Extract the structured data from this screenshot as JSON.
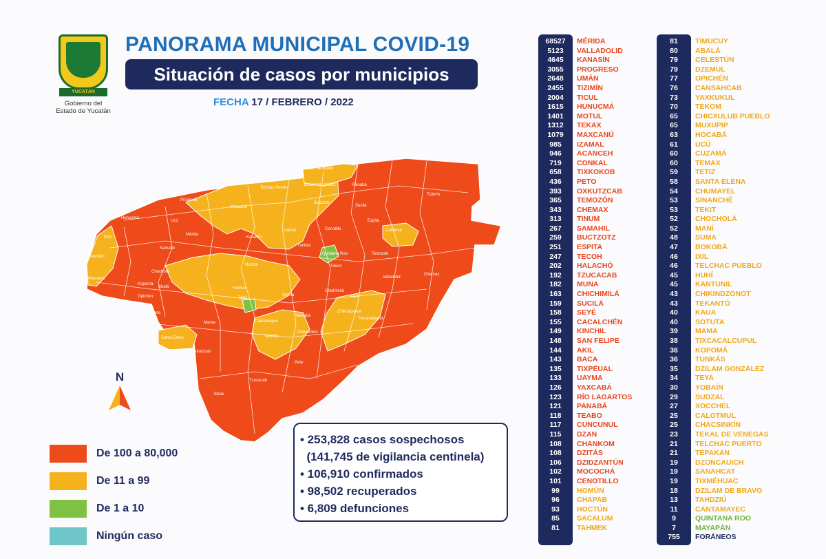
{
  "header": {
    "logo_ribbon": "YUCATÁN",
    "logo_line1": "Gobierno del",
    "logo_line2": "Estado de Yucatán",
    "title": "PANORAMA MUNICIPAL COVID-19",
    "subtitle": "Situación de casos por municipios",
    "date_label": "FECHA",
    "date_value": "17 / FEBRERO / 2022"
  },
  "colors": {
    "high": "#ee4a1a",
    "mid": "#f6b21c",
    "low": "#7fc243",
    "none": "#6ec6c9",
    "navy": "#1e2a5e",
    "title_blue": "#1f6fb8"
  },
  "compass_label": "N",
  "legend": [
    {
      "label": "De 100 a 80,000",
      "color": "#ee4a1a"
    },
    {
      "label": "De 11 a 99",
      "color": "#f6b21c"
    },
    {
      "label": "De 1 a 10",
      "color": "#7fc243"
    },
    {
      "label": "Ningún caso",
      "color": "#6ec6c9"
    }
  ],
  "stats": [
    "• 253,828 casos sospechosos",
    "  (141,745 de vigilancia centinela)",
    "• 106,910 confirmados",
    "• 98,502 recuperados",
    "• 6,809 defunciones"
  ],
  "map_labels": [
    "Dzilam de Bravo",
    "San Felipe",
    "Río Lagartos",
    "Dzilam González",
    "Telchac Puerto",
    "Panabá",
    "Tizimín",
    "Progreso",
    "Mocochá",
    "Buctzotz",
    "Sucilá",
    "Hunucmá",
    "Ucú",
    "Izamal",
    "Cenotillo",
    "Espita",
    "Calotmul",
    "Tetiz",
    "Mérida",
    "Kanasín",
    "Tunkás",
    "Celestún",
    "Samahil",
    "Quintana Roo",
    "Temozón",
    "Chocholá",
    "Hoctún",
    "Tinum",
    "Valladolid",
    "Chemax",
    "Maxcanú",
    "Kopomá",
    "Abalá",
    "Homún",
    "Chichimilá",
    "Halachó",
    "Opichén",
    "Tekit",
    "Sotuta",
    "Kaua",
    "Muna",
    "Mama",
    "Cantamayec",
    "Yaxcabá",
    "Chikindzonot",
    "Tixcacalcupul",
    "Chacsinkín",
    "Santa Elena",
    "Tahdziú",
    "Oxkutzcab",
    "Peto",
    "Tzucacab",
    "Tekax"
  ],
  "municipalities_col1": [
    {
      "n": "68527",
      "name": "MÉRIDA",
      "level": "high"
    },
    {
      "n": "5123",
      "name": "VALLADOLID",
      "level": "high"
    },
    {
      "n": "4645",
      "name": "KANASÍN",
      "level": "high"
    },
    {
      "n": "3055",
      "name": "PROGRESO",
      "level": "high"
    },
    {
      "n": "2648",
      "name": "UMÁN",
      "level": "high"
    },
    {
      "n": "2455",
      "name": "TIZIMÍN",
      "level": "high"
    },
    {
      "n": "2004",
      "name": "TICUL",
      "level": "high"
    },
    {
      "n": "1615",
      "name": "HUNUCMÁ",
      "level": "high"
    },
    {
      "n": "1401",
      "name": "MOTUL",
      "level": "high"
    },
    {
      "n": "1312",
      "name": "TEKAX",
      "level": "high"
    },
    {
      "n": "1079",
      "name": "MAXCANÚ",
      "level": "high"
    },
    {
      "n": "985",
      "name": "IZAMAL",
      "level": "high"
    },
    {
      "n": "946",
      "name": "ACANCEH",
      "level": "high"
    },
    {
      "n": "719",
      "name": "CONKAL",
      "level": "high"
    },
    {
      "n": "658",
      "name": "TIXKOKOB",
      "level": "high"
    },
    {
      "n": "436",
      "name": "PETO",
      "level": "high"
    },
    {
      "n": "393",
      "name": "OXKUTZCAB",
      "level": "high"
    },
    {
      "n": "365",
      "name": "TEMOZÓN",
      "level": "high"
    },
    {
      "n": "343",
      "name": "CHEMAX",
      "level": "high"
    },
    {
      "n": "313",
      "name": "TINUM",
      "level": "high"
    },
    {
      "n": "267",
      "name": "SAMAHIL",
      "level": "high"
    },
    {
      "n": "259",
      "name": "BUCTZOTZ",
      "level": "high"
    },
    {
      "n": "251",
      "name": "ESPITA",
      "level": "high"
    },
    {
      "n": "247",
      "name": "TECOH",
      "level": "high"
    },
    {
      "n": "202",
      "name": "HALACHÓ",
      "level": "high"
    },
    {
      "n": "192",
      "name": "TZUCACAB",
      "level": "high"
    },
    {
      "n": "182",
      "name": "MUNA",
      "level": "high"
    },
    {
      "n": "163",
      "name": "CHICHIMILÁ",
      "level": "high"
    },
    {
      "n": "159",
      "name": "SUCILÁ",
      "level": "high"
    },
    {
      "n": "158",
      "name": "SEYÉ",
      "level": "high"
    },
    {
      "n": "155",
      "name": "CACALCHÉN",
      "level": "high"
    },
    {
      "n": "149",
      "name": "KINCHIL",
      "level": "high"
    },
    {
      "n": "148",
      "name": "SAN FELIPE",
      "level": "high"
    },
    {
      "n": "144",
      "name": "AKIL",
      "level": "high"
    },
    {
      "n": "143",
      "name": "BACA",
      "level": "high"
    },
    {
      "n": "135",
      "name": "TIXPÉUAL",
      "level": "high"
    },
    {
      "n": "133",
      "name": "UAYMA",
      "level": "high"
    },
    {
      "n": "126",
      "name": "YAXCABÁ",
      "level": "high"
    },
    {
      "n": "123",
      "name": "RÍO LAGARTOS",
      "level": "high"
    },
    {
      "n": "121",
      "name": "PANABÁ",
      "level": "high"
    },
    {
      "n": "118",
      "name": "TEABO",
      "level": "high"
    },
    {
      "n": "117",
      "name": "CUNCUNUL",
      "level": "high"
    },
    {
      "n": "115",
      "name": "DZAN",
      "level": "high"
    },
    {
      "n": "108",
      "name": "CHANKOM",
      "level": "high"
    },
    {
      "n": "108",
      "name": "DZITÁS",
      "level": "high"
    },
    {
      "n": "106",
      "name": "DZIDZANTÚN",
      "level": "high"
    },
    {
      "n": "102",
      "name": "MOCOCHÁ",
      "level": "high"
    },
    {
      "n": "101",
      "name": "CENOTILLO",
      "level": "high"
    },
    {
      "n": "99",
      "name": "HOMÚN",
      "level": "mid"
    },
    {
      "n": "96",
      "name": "CHAPAB",
      "level": "mid"
    },
    {
      "n": "93",
      "name": "HOCTÚN",
      "level": "mid"
    },
    {
      "n": "85",
      "name": "SACALUM",
      "level": "mid"
    },
    {
      "n": "81",
      "name": "TAHMEK",
      "level": "mid"
    }
  ],
  "municipalities_col2": [
    {
      "n": "81",
      "name": "TIMUCUY",
      "level": "mid"
    },
    {
      "n": "80",
      "name": "ABALÁ",
      "level": "mid"
    },
    {
      "n": "79",
      "name": "CELESTÚN",
      "level": "mid"
    },
    {
      "n": "79",
      "name": "DZEMUL",
      "level": "mid"
    },
    {
      "n": "77",
      "name": "OPICHÉN",
      "level": "mid"
    },
    {
      "n": "76",
      "name": "CANSAHCAB",
      "level": "mid"
    },
    {
      "n": "73",
      "name": "YAXKUKUL",
      "level": "mid"
    },
    {
      "n": "70",
      "name": "TEKOM",
      "level": "mid"
    },
    {
      "n": "65",
      "name": "CHICXULUB PUEBLO",
      "level": "mid"
    },
    {
      "n": "65",
      "name": "MUXUPIP",
      "level": "mid"
    },
    {
      "n": "63",
      "name": "HOCABÁ",
      "level": "mid"
    },
    {
      "n": "61",
      "name": "UCÚ",
      "level": "mid"
    },
    {
      "n": "60",
      "name": "CUZAMÁ",
      "level": "mid"
    },
    {
      "n": "60",
      "name": "TEMAX",
      "level": "mid"
    },
    {
      "n": "59",
      "name": "TETIZ",
      "level": "mid"
    },
    {
      "n": "58",
      "name": "SANTA ELENA",
      "level": "mid"
    },
    {
      "n": "54",
      "name": "CHUMAYEL",
      "level": "mid"
    },
    {
      "n": "53",
      "name": "SINANCHÉ",
      "level": "mid"
    },
    {
      "n": "53",
      "name": "TEKIT",
      "level": "mid"
    },
    {
      "n": "52",
      "name": "CHOCHOLÁ",
      "level": "mid"
    },
    {
      "n": "52",
      "name": "MANÍ",
      "level": "mid"
    },
    {
      "n": "48",
      "name": "SUMA",
      "level": "mid"
    },
    {
      "n": "47",
      "name": "BOKOBÁ",
      "level": "mid"
    },
    {
      "n": "46",
      "name": "IXIL",
      "level": "mid"
    },
    {
      "n": "46",
      "name": "TELCHAC PUEBLO",
      "level": "mid"
    },
    {
      "n": "45",
      "name": "HUHÍ",
      "level": "mid"
    },
    {
      "n": "45",
      "name": "KANTUNIL",
      "level": "mid"
    },
    {
      "n": "43",
      "name": "CHIKINDZONOT",
      "level": "mid"
    },
    {
      "n": "43",
      "name": "TEKANTÓ",
      "level": "mid"
    },
    {
      "n": "40",
      "name": "KAUA",
      "level": "mid"
    },
    {
      "n": "40",
      "name": "SOTUTA",
      "level": "mid"
    },
    {
      "n": "39",
      "name": "MAMA",
      "level": "mid"
    },
    {
      "n": "38",
      "name": "TIXCACALCUPUL",
      "level": "mid"
    },
    {
      "n": "36",
      "name": "KOPOMÁ",
      "level": "mid"
    },
    {
      "n": "36",
      "name": "TUNKÁS",
      "level": "mid"
    },
    {
      "n": "35",
      "name": "DZILAM GONZÁLEZ",
      "level": "mid"
    },
    {
      "n": "34",
      "name": "TEYA",
      "level": "mid"
    },
    {
      "n": "30",
      "name": "YOBAÍN",
      "level": "mid"
    },
    {
      "n": "29",
      "name": "SUDZAL",
      "level": "mid"
    },
    {
      "n": "27",
      "name": "XOCCHEL",
      "level": "mid"
    },
    {
      "n": "25",
      "name": "CALOTMUL",
      "level": "mid"
    },
    {
      "n": "25",
      "name": "CHACSINKÍN",
      "level": "mid"
    },
    {
      "n": "23",
      "name": "TEKAL DE VENEGAS",
      "level": "mid"
    },
    {
      "n": "21",
      "name": "TELCHAC PUERTO",
      "level": "mid"
    },
    {
      "n": "21",
      "name": "TEPAKÁN",
      "level": "mid"
    },
    {
      "n": "19",
      "name": "DZONCAUICH",
      "level": "mid"
    },
    {
      "n": "19",
      "name": "SANAHCAT",
      "level": "mid"
    },
    {
      "n": "19",
      "name": "TIXMÉHUAC",
      "level": "mid"
    },
    {
      "n": "18",
      "name": "DZILAM DE BRAVO",
      "level": "mid"
    },
    {
      "n": "13",
      "name": "TAHDZIÚ",
      "level": "mid"
    },
    {
      "n": "11",
      "name": "CANTAMAYEC",
      "level": "mid"
    },
    {
      "n": "9",
      "name": "QUINTANA ROO",
      "level": "low"
    },
    {
      "n": "7",
      "name": "MAYAPÁN",
      "level": "low"
    },
    {
      "n": "755",
      "name": "FORÁNEOS",
      "level": "navy"
    }
  ]
}
